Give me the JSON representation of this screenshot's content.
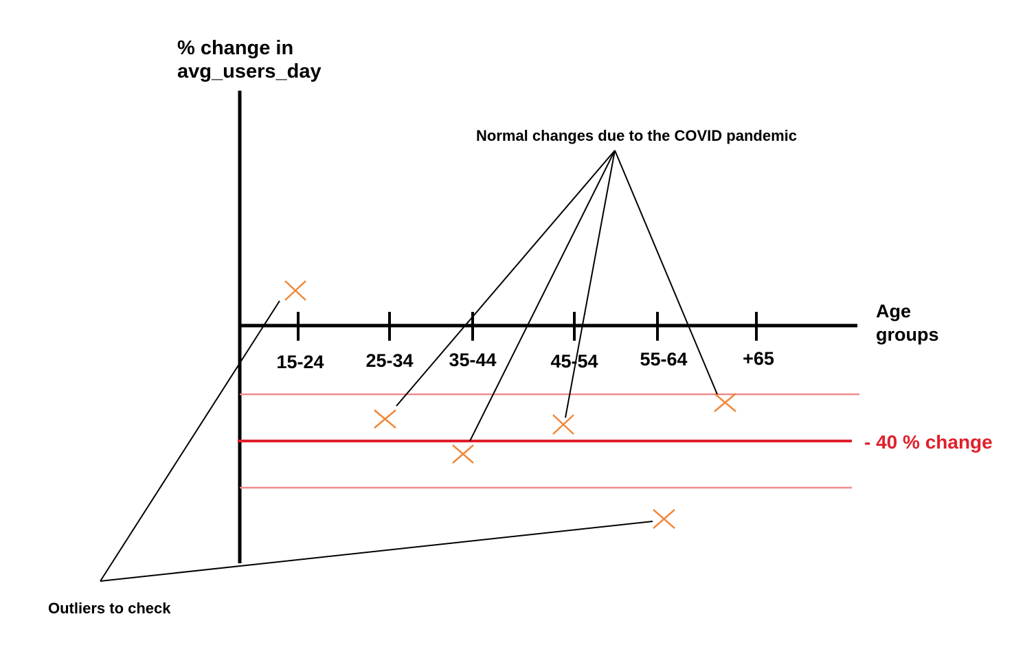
{
  "y_axis_label": [
    "% change in",
    "avg_users_day"
  ],
  "x_axis_label": [
    "Age",
    "groups"
  ],
  "age_groups": [
    "15-24",
    "25-34",
    "35-44",
    "45-54",
    "55-64",
    "+65"
  ],
  "reference_line_label": "- 40 % change",
  "annotation_normal": "Normal changes due to the COVID pandemic",
  "annotation_outliers": "Outliers to check",
  "colors": {
    "axis": "#000000",
    "marker": "#f0883a",
    "reference_line": "#e0202a",
    "band_line": "#f08a8a",
    "pointer": "#000000"
  }
}
